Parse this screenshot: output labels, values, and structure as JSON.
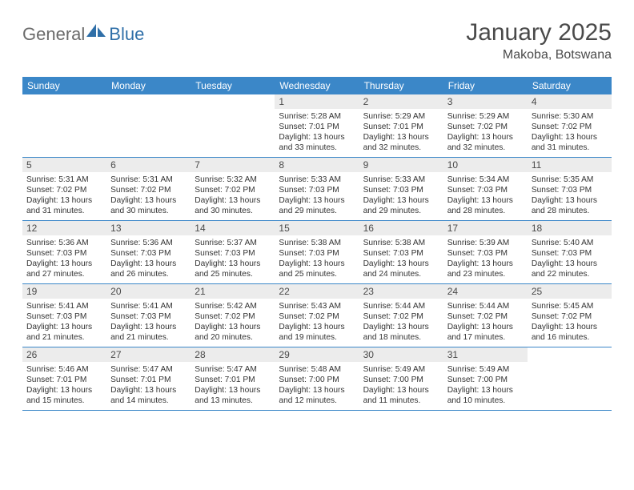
{
  "logo": {
    "text1": "General",
    "text2": "Blue"
  },
  "title": "January 2025",
  "location": "Makoba, Botswana",
  "colors": {
    "header_bg": "#3b87c8",
    "header_text": "#ffffff",
    "daynum_bg": "#ececec",
    "border": "#3b87c8",
    "logo_gray": "#6b6b6b",
    "logo_blue": "#2f6fa8"
  },
  "weekdays": [
    "Sunday",
    "Monday",
    "Tuesday",
    "Wednesday",
    "Thursday",
    "Friday",
    "Saturday"
  ],
  "weeks": [
    [
      {
        "n": "",
        "sunrise": "",
        "sunset": "",
        "daylight": ""
      },
      {
        "n": "",
        "sunrise": "",
        "sunset": "",
        "daylight": ""
      },
      {
        "n": "",
        "sunrise": "",
        "sunset": "",
        "daylight": ""
      },
      {
        "n": "1",
        "sunrise": "Sunrise: 5:28 AM",
        "sunset": "Sunset: 7:01 PM",
        "daylight": "Daylight: 13 hours and 33 minutes."
      },
      {
        "n": "2",
        "sunrise": "Sunrise: 5:29 AM",
        "sunset": "Sunset: 7:01 PM",
        "daylight": "Daylight: 13 hours and 32 minutes."
      },
      {
        "n": "3",
        "sunrise": "Sunrise: 5:29 AM",
        "sunset": "Sunset: 7:02 PM",
        "daylight": "Daylight: 13 hours and 32 minutes."
      },
      {
        "n": "4",
        "sunrise": "Sunrise: 5:30 AM",
        "sunset": "Sunset: 7:02 PM",
        "daylight": "Daylight: 13 hours and 31 minutes."
      }
    ],
    [
      {
        "n": "5",
        "sunrise": "Sunrise: 5:31 AM",
        "sunset": "Sunset: 7:02 PM",
        "daylight": "Daylight: 13 hours and 31 minutes."
      },
      {
        "n": "6",
        "sunrise": "Sunrise: 5:31 AM",
        "sunset": "Sunset: 7:02 PM",
        "daylight": "Daylight: 13 hours and 30 minutes."
      },
      {
        "n": "7",
        "sunrise": "Sunrise: 5:32 AM",
        "sunset": "Sunset: 7:02 PM",
        "daylight": "Daylight: 13 hours and 30 minutes."
      },
      {
        "n": "8",
        "sunrise": "Sunrise: 5:33 AM",
        "sunset": "Sunset: 7:03 PM",
        "daylight": "Daylight: 13 hours and 29 minutes."
      },
      {
        "n": "9",
        "sunrise": "Sunrise: 5:33 AM",
        "sunset": "Sunset: 7:03 PM",
        "daylight": "Daylight: 13 hours and 29 minutes."
      },
      {
        "n": "10",
        "sunrise": "Sunrise: 5:34 AM",
        "sunset": "Sunset: 7:03 PM",
        "daylight": "Daylight: 13 hours and 28 minutes."
      },
      {
        "n": "11",
        "sunrise": "Sunrise: 5:35 AM",
        "sunset": "Sunset: 7:03 PM",
        "daylight": "Daylight: 13 hours and 28 minutes."
      }
    ],
    [
      {
        "n": "12",
        "sunrise": "Sunrise: 5:36 AM",
        "sunset": "Sunset: 7:03 PM",
        "daylight": "Daylight: 13 hours and 27 minutes."
      },
      {
        "n": "13",
        "sunrise": "Sunrise: 5:36 AM",
        "sunset": "Sunset: 7:03 PM",
        "daylight": "Daylight: 13 hours and 26 minutes."
      },
      {
        "n": "14",
        "sunrise": "Sunrise: 5:37 AM",
        "sunset": "Sunset: 7:03 PM",
        "daylight": "Daylight: 13 hours and 25 minutes."
      },
      {
        "n": "15",
        "sunrise": "Sunrise: 5:38 AM",
        "sunset": "Sunset: 7:03 PM",
        "daylight": "Daylight: 13 hours and 25 minutes."
      },
      {
        "n": "16",
        "sunrise": "Sunrise: 5:38 AM",
        "sunset": "Sunset: 7:03 PM",
        "daylight": "Daylight: 13 hours and 24 minutes."
      },
      {
        "n": "17",
        "sunrise": "Sunrise: 5:39 AM",
        "sunset": "Sunset: 7:03 PM",
        "daylight": "Daylight: 13 hours and 23 minutes."
      },
      {
        "n": "18",
        "sunrise": "Sunrise: 5:40 AM",
        "sunset": "Sunset: 7:03 PM",
        "daylight": "Daylight: 13 hours and 22 minutes."
      }
    ],
    [
      {
        "n": "19",
        "sunrise": "Sunrise: 5:41 AM",
        "sunset": "Sunset: 7:03 PM",
        "daylight": "Daylight: 13 hours and 21 minutes."
      },
      {
        "n": "20",
        "sunrise": "Sunrise: 5:41 AM",
        "sunset": "Sunset: 7:03 PM",
        "daylight": "Daylight: 13 hours and 21 minutes."
      },
      {
        "n": "21",
        "sunrise": "Sunrise: 5:42 AM",
        "sunset": "Sunset: 7:02 PM",
        "daylight": "Daylight: 13 hours and 20 minutes."
      },
      {
        "n": "22",
        "sunrise": "Sunrise: 5:43 AM",
        "sunset": "Sunset: 7:02 PM",
        "daylight": "Daylight: 13 hours and 19 minutes."
      },
      {
        "n": "23",
        "sunrise": "Sunrise: 5:44 AM",
        "sunset": "Sunset: 7:02 PM",
        "daylight": "Daylight: 13 hours and 18 minutes."
      },
      {
        "n": "24",
        "sunrise": "Sunrise: 5:44 AM",
        "sunset": "Sunset: 7:02 PM",
        "daylight": "Daylight: 13 hours and 17 minutes."
      },
      {
        "n": "25",
        "sunrise": "Sunrise: 5:45 AM",
        "sunset": "Sunset: 7:02 PM",
        "daylight": "Daylight: 13 hours and 16 minutes."
      }
    ],
    [
      {
        "n": "26",
        "sunrise": "Sunrise: 5:46 AM",
        "sunset": "Sunset: 7:01 PM",
        "daylight": "Daylight: 13 hours and 15 minutes."
      },
      {
        "n": "27",
        "sunrise": "Sunrise: 5:47 AM",
        "sunset": "Sunset: 7:01 PM",
        "daylight": "Daylight: 13 hours and 14 minutes."
      },
      {
        "n": "28",
        "sunrise": "Sunrise: 5:47 AM",
        "sunset": "Sunset: 7:01 PM",
        "daylight": "Daylight: 13 hours and 13 minutes."
      },
      {
        "n": "29",
        "sunrise": "Sunrise: 5:48 AM",
        "sunset": "Sunset: 7:00 PM",
        "daylight": "Daylight: 13 hours and 12 minutes."
      },
      {
        "n": "30",
        "sunrise": "Sunrise: 5:49 AM",
        "sunset": "Sunset: 7:00 PM",
        "daylight": "Daylight: 13 hours and 11 minutes."
      },
      {
        "n": "31",
        "sunrise": "Sunrise: 5:49 AM",
        "sunset": "Sunset: 7:00 PM",
        "daylight": "Daylight: 13 hours and 10 minutes."
      },
      {
        "n": "",
        "sunrise": "",
        "sunset": "",
        "daylight": ""
      }
    ]
  ]
}
